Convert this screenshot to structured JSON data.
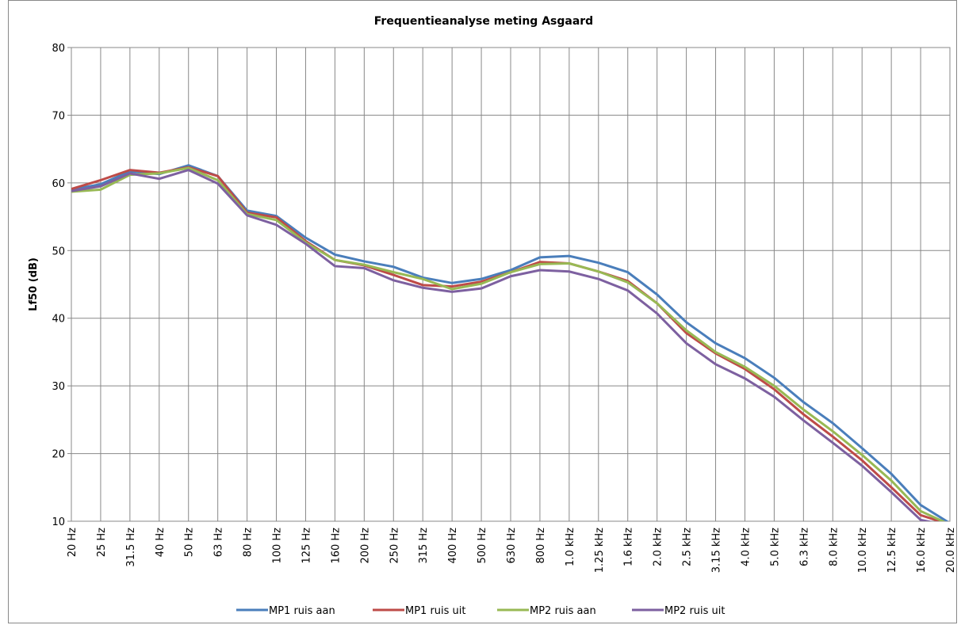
{
  "chart_data": {
    "type": "line",
    "title": "Frequentieanalyse meting Asgaard",
    "y_label": "Lf50 (dB)",
    "categories": [
      "20 Hz",
      "25 Hz",
      "31.5 Hz",
      "40 Hz",
      "50 Hz",
      "63 Hz",
      "80 Hz",
      "100 Hz",
      "125 Hz",
      "160 Hz",
      "200 Hz",
      "250 Hz",
      "315 Hz",
      "400 Hz",
      "500 Hz",
      "630 Hz",
      "800 Hz",
      "1.0 kHz",
      "1.25 kHz",
      "1.6 kHz",
      "2.0 kHz",
      "2.5 kHz",
      "3.15 kHz",
      "4.0 kHz",
      "5.0 kHz",
      "6.3 kHz",
      "8.0 kHz",
      "10.0 kHz",
      "12.5 kHz",
      "16.0 kHz",
      "20.0 kHz"
    ],
    "series": [
      {
        "name": "MP1 ruis aan",
        "color": "#4a7ebb",
        "values": [
          59,
          59.8,
          61.7,
          61.3,
          62.6,
          61,
          55.9,
          55.1,
          51.9,
          49.4,
          48.4,
          47.6,
          46,
          45.2,
          45.8,
          47.1,
          49,
          49.2,
          48.2,
          46.8,
          43.5,
          39.4,
          36.3,
          34.1,
          31.2,
          27.6,
          24.5,
          20.8,
          17,
          12.4,
          9.7
        ]
      },
      {
        "name": "MP1 ruis uit",
        "color": "#be4b48",
        "values": [
          59.1,
          60.4,
          61.9,
          61.5,
          62.3,
          61,
          55.6,
          54.9,
          51.4,
          48.6,
          47.8,
          46.4,
          44.9,
          44.7,
          45.4,
          46.8,
          48.3,
          48.1,
          46.9,
          45.5,
          42.2,
          37.8,
          34.8,
          32.5,
          29.5,
          25.8,
          22.5,
          19,
          15,
          10.9,
          9.5
        ]
      },
      {
        "name": "MP2 ruis aan",
        "color": "#98b954",
        "values": [
          58.7,
          59,
          61.2,
          61.4,
          62.2,
          60.4,
          55.4,
          54.5,
          51.2,
          48.6,
          47.9,
          46.8,
          45.8,
          44.3,
          45.1,
          46.8,
          48,
          48.1,
          46.9,
          45.3,
          42.2,
          38.2,
          35,
          32.8,
          30,
          26.5,
          23.3,
          19.8,
          16,
          11.5,
          9.5
        ]
      },
      {
        "name": "MP2 ruis uit",
        "color": "#7d60a0",
        "values": [
          58.8,
          59.5,
          61.4,
          60.6,
          61.9,
          59.9,
          55.2,
          53.8,
          51,
          47.7,
          47.4,
          45.6,
          44.5,
          43.9,
          44.4,
          46.2,
          47.1,
          46.9,
          45.8,
          44.1,
          40.7,
          36.3,
          33.2,
          31.1,
          28.4,
          24.9,
          21.6,
          18.2,
          14.3,
          10.2,
          9.3
        ]
      }
    ],
    "ylim": [
      10,
      80
    ],
    "yticks": [
      10,
      20,
      30,
      40,
      50,
      60,
      70,
      80
    ],
    "grid": true,
    "legend": "bottom"
  }
}
